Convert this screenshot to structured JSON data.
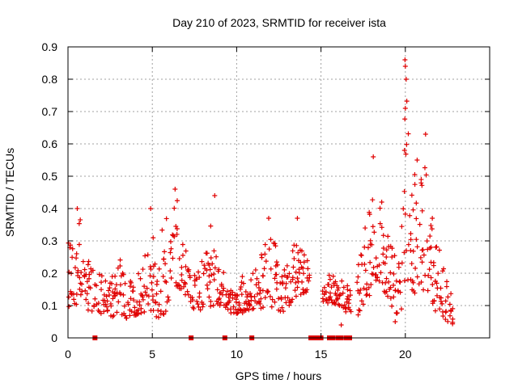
{
  "chart_data": {
    "type": "scatter",
    "title": "Day 210 of 2023, SRMTID for receiver ista",
    "xlabel": "GPS time / hours",
    "ylabel": "SRMTID / TECUs",
    "xlim": [
      0,
      25
    ],
    "ylim": [
      0,
      0.9
    ],
    "x_ticks": [
      0,
      5,
      10,
      15,
      20
    ],
    "x_tick_labels": [
      "0",
      "5",
      "10",
      "15",
      "20"
    ],
    "y_ticks": [
      0,
      0.1,
      0.2,
      0.3,
      0.4,
      0.5,
      0.6,
      0.7,
      0.8,
      0.9
    ],
    "y_tick_labels": [
      "0",
      "0.1",
      "0.2",
      "0.3",
      "0.4",
      "0.5",
      "0.6",
      "0.7",
      "0.8",
      "0.9"
    ],
    "grid": true,
    "marker": "+",
    "color": "#e00000",
    "zero_markers_x": [
      1.6,
      7.3,
      9.3,
      10.9,
      14.4,
      14.6,
      14.8,
      15.0,
      15.5,
      15.7,
      16.0,
      16.2,
      16.5,
      16.7
    ],
    "envelope": [
      [
        0.0,
        0.08,
        0.3
      ],
      [
        0.4,
        0.1,
        0.27
      ],
      [
        0.7,
        0.1,
        0.4
      ],
      [
        1.0,
        0.09,
        0.28
      ],
      [
        1.5,
        0.08,
        0.22
      ],
      [
        2.0,
        0.07,
        0.2
      ],
      [
        2.5,
        0.06,
        0.18
      ],
      [
        3.0,
        0.08,
        0.25
      ],
      [
        3.5,
        0.06,
        0.18
      ],
      [
        4.0,
        0.07,
        0.2
      ],
      [
        4.5,
        0.08,
        0.22
      ],
      [
        4.9,
        0.08,
        0.4
      ],
      [
        5.3,
        0.06,
        0.2
      ],
      [
        5.7,
        0.07,
        0.38
      ],
      [
        6.2,
        0.13,
        0.35
      ],
      [
        6.4,
        0.15,
        0.47
      ],
      [
        6.8,
        0.15,
        0.3
      ],
      [
        7.2,
        0.1,
        0.23
      ],
      [
        7.6,
        0.08,
        0.18
      ],
      [
        8.0,
        0.08,
        0.3
      ],
      [
        8.5,
        0.1,
        0.42
      ],
      [
        8.9,
        0.1,
        0.3
      ],
      [
        9.5,
        0.08,
        0.17
      ],
      [
        10.0,
        0.07,
        0.18
      ],
      [
        10.5,
        0.08,
        0.2
      ],
      [
        11.0,
        0.09,
        0.2
      ],
      [
        11.5,
        0.09,
        0.27
      ],
      [
        11.9,
        0.1,
        0.37
      ],
      [
        12.3,
        0.08,
        0.3
      ],
      [
        12.7,
        0.08,
        0.2
      ],
      [
        13.2,
        0.1,
        0.25
      ],
      [
        13.6,
        0.13,
        0.37
      ],
      [
        14.0,
        0.14,
        0.26
      ],
      [
        14.3,
        0.14,
        0.25
      ],
      [
        15.1,
        0.1,
        0.18
      ],
      [
        15.5,
        0.11,
        0.2
      ],
      [
        16.0,
        0.1,
        0.19
      ],
      [
        16.4,
        0.08,
        0.19
      ],
      [
        16.9,
        0.08,
        0.13
      ],
      [
        17.2,
        0.06,
        0.2
      ],
      [
        17.5,
        0.1,
        0.35
      ],
      [
        17.8,
        0.12,
        0.38
      ],
      [
        18.0,
        0.15,
        0.45
      ],
      [
        18.2,
        0.15,
        0.55
      ],
      [
        18.5,
        0.18,
        0.42
      ],
      [
        18.9,
        0.12,
        0.35
      ],
      [
        19.3,
        0.08,
        0.28
      ],
      [
        19.7,
        0.06,
        0.25
      ],
      [
        19.9,
        0.08,
        0.58
      ],
      [
        20.0,
        0.1,
        0.86
      ],
      [
        20.3,
        0.15,
        0.42
      ],
      [
        20.6,
        0.12,
        0.55
      ],
      [
        21.0,
        0.14,
        0.5
      ],
      [
        21.2,
        0.15,
        0.63
      ],
      [
        21.5,
        0.1,
        0.35
      ],
      [
        21.9,
        0.07,
        0.3
      ],
      [
        22.3,
        0.05,
        0.23
      ],
      [
        22.8,
        0.04,
        0.15
      ]
    ],
    "outliers": [
      [
        0.55,
        0.4
      ],
      [
        4.9,
        0.4
      ],
      [
        6.35,
        0.46
      ],
      [
        8.7,
        0.44
      ],
      [
        11.9,
        0.37
      ],
      [
        13.6,
        0.37
      ],
      [
        18.1,
        0.56
      ],
      [
        19.98,
        0.86
      ],
      [
        20.0,
        0.84
      ],
      [
        20.05,
        0.8
      ],
      [
        20.0,
        0.71
      ],
      [
        19.95,
        0.58
      ],
      [
        21.2,
        0.63
      ],
      [
        20.7,
        0.55
      ],
      [
        21.6,
        0.37
      ],
      [
        16.2,
        0.04
      ],
      [
        19.4,
        0.05
      ],
      [
        18.6,
        0.42
      ]
    ],
    "gaps": [
      [
        14.35,
        15.1
      ],
      [
        16.8,
        17.15
      ]
    ]
  }
}
